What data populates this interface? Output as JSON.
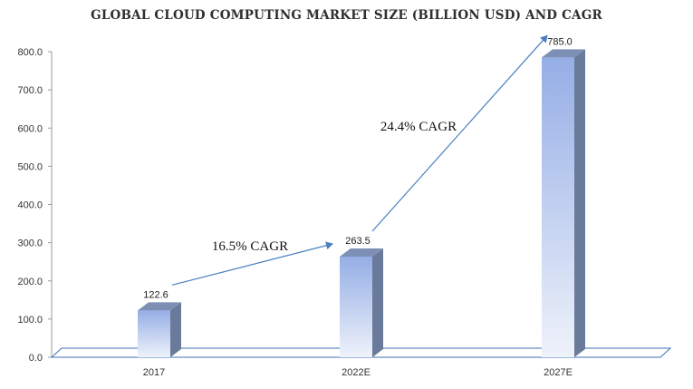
{
  "chart_data": {
    "type": "bar",
    "title": "GLOBAL CLOUD COMPUTING MARKET SIZE (BILLION USD) AND CAGR",
    "categories": [
      "2017",
      "2022E",
      "2027E"
    ],
    "values": [
      122.6,
      263.5,
      785.0
    ],
    "value_labels": [
      "122.6",
      "263.5",
      "785.0"
    ],
    "yticks": [
      "0.0",
      "100.0",
      "200.0",
      "300.0",
      "400.0",
      "500.0",
      "600.0",
      "700.0",
      "800.0"
    ],
    "ylim": [
      0,
      800
    ],
    "grid": false,
    "annotations": [
      {
        "text": "16.5% CAGR",
        "from": "2017",
        "to": "2022E"
      },
      {
        "text": "24.4% CAGR",
        "from": "2022E",
        "to": "2027E"
      }
    ],
    "colors": {
      "bar_top": "#95aee6",
      "bar_bottom": "#eef2fa",
      "bar_side": "#6a7a9a",
      "bar_cap": "#7d8fb5",
      "arrow": "#4a7fc1",
      "floor": "#3f6fb5"
    }
  }
}
